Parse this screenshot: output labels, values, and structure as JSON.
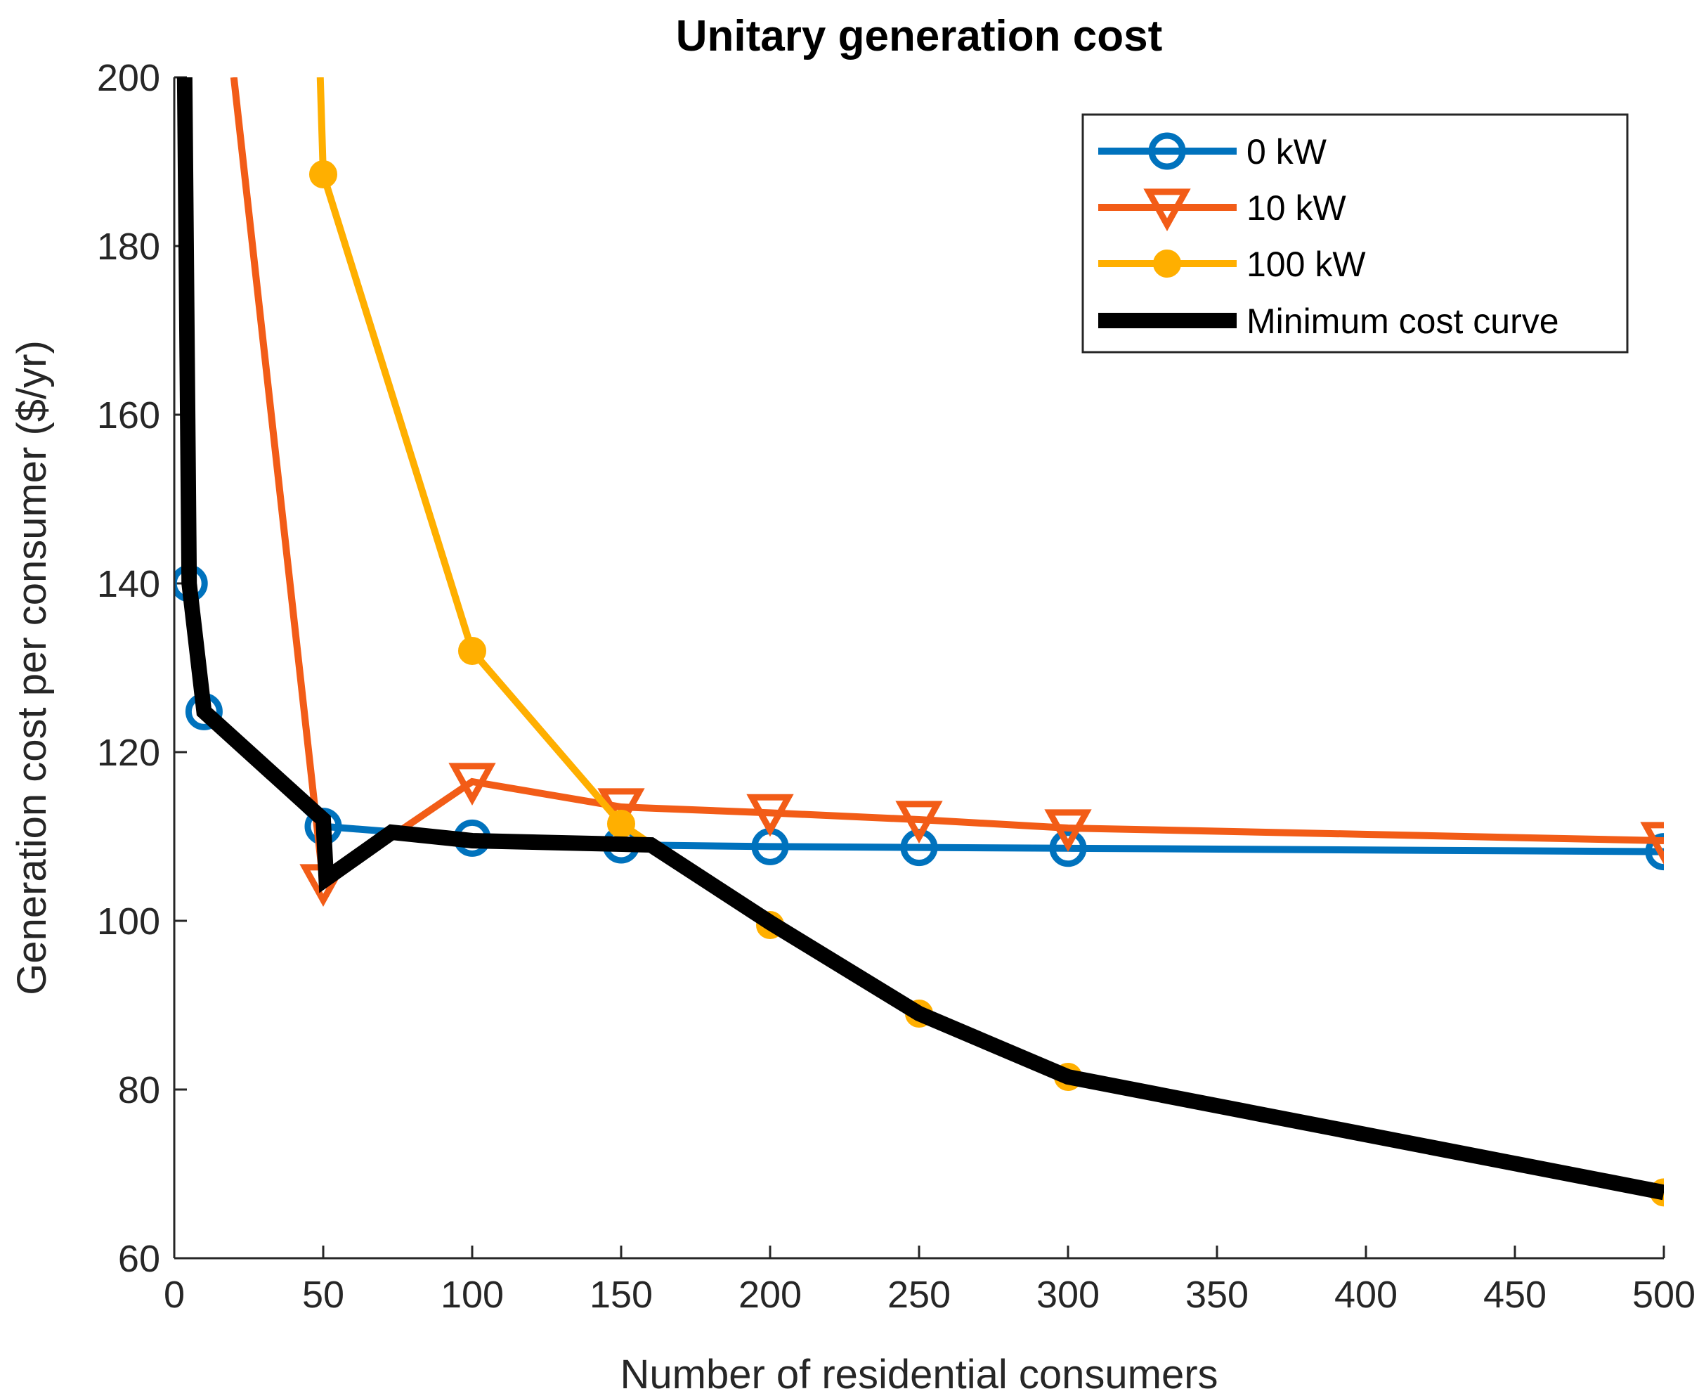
{
  "chart_data": {
    "type": "line",
    "title": "Unitary generation cost",
    "xlabel": "Number of residential consumers",
    "ylabel": "Generation cost per consumer ($/yr)",
    "xlim": [
      0,
      500
    ],
    "ylim": [
      60,
      200
    ],
    "x_ticks": [
      {
        "value": 0,
        "label": "0"
      },
      {
        "value": 50,
        "label": "50"
      },
      {
        "value": 100,
        "label": "100"
      },
      {
        "value": 150,
        "label": "150"
      },
      {
        "value": 200,
        "label": "200"
      },
      {
        "value": 250,
        "label": "250"
      },
      {
        "value": 300,
        "label": "300"
      },
      {
        "value": 350,
        "label": "350"
      },
      {
        "value": 400,
        "label": "400"
      },
      {
        "value": 450,
        "label": "450"
      },
      {
        "value": 500,
        "label": "500"
      }
    ],
    "y_ticks": [
      {
        "value": 60,
        "label": "60"
      },
      {
        "value": 80,
        "label": "80"
      },
      {
        "value": 100,
        "label": "100"
      },
      {
        "value": 120,
        "label": "120"
      },
      {
        "value": 140,
        "label": "140"
      },
      {
        "value": 160,
        "label": "160"
      },
      {
        "value": 180,
        "label": "180"
      },
      {
        "value": 200,
        "label": "200"
      }
    ],
    "legend_position": "top-right",
    "series": [
      {
        "name": "0 kW",
        "color": "#0072BD",
        "marker": "circle-open",
        "points": [
          [
            5,
            140
          ],
          [
            10,
            124.8
          ],
          [
            50,
            111.2
          ],
          [
            100,
            109.8
          ],
          [
            150,
            109
          ],
          [
            200,
            108.8
          ],
          [
            250,
            108.7
          ],
          [
            300,
            108.6
          ],
          [
            500,
            108.2
          ]
        ]
      },
      {
        "name": "10 kW",
        "color": "#F25C17",
        "marker": "triangle-down-open",
        "points": [
          [
            20,
            200
          ],
          [
            50,
            104.5
          ],
          [
            100,
            116.5
          ],
          [
            150,
            113.5
          ],
          [
            200,
            112.8
          ],
          [
            250,
            112
          ],
          [
            300,
            111
          ],
          [
            500,
            109.5
          ]
        ]
      },
      {
        "name": "100 kW",
        "color": "#FFAF00",
        "marker": "circle-filled",
        "points": [
          [
            49,
            200
          ],
          [
            50,
            188.5
          ],
          [
            100,
            132
          ],
          [
            150,
            111.5
          ],
          [
            200,
            99.5
          ],
          [
            250,
            89
          ],
          [
            300,
            81.5
          ],
          [
            500,
            67.8
          ]
        ]
      },
      {
        "name": "Minimum cost curve",
        "color": "#000000",
        "marker": "none",
        "points": [
          [
            3.5,
            200
          ],
          [
            5,
            140
          ],
          [
            10,
            124.8
          ],
          [
            50,
            112
          ],
          [
            51,
            105
          ],
          [
            73,
            110.5
          ],
          [
            100,
            109.5
          ],
          [
            160,
            109
          ],
          [
            200,
            99.8
          ],
          [
            250,
            89
          ],
          [
            300,
            81.5
          ],
          [
            500,
            67.8
          ]
        ]
      }
    ]
  }
}
